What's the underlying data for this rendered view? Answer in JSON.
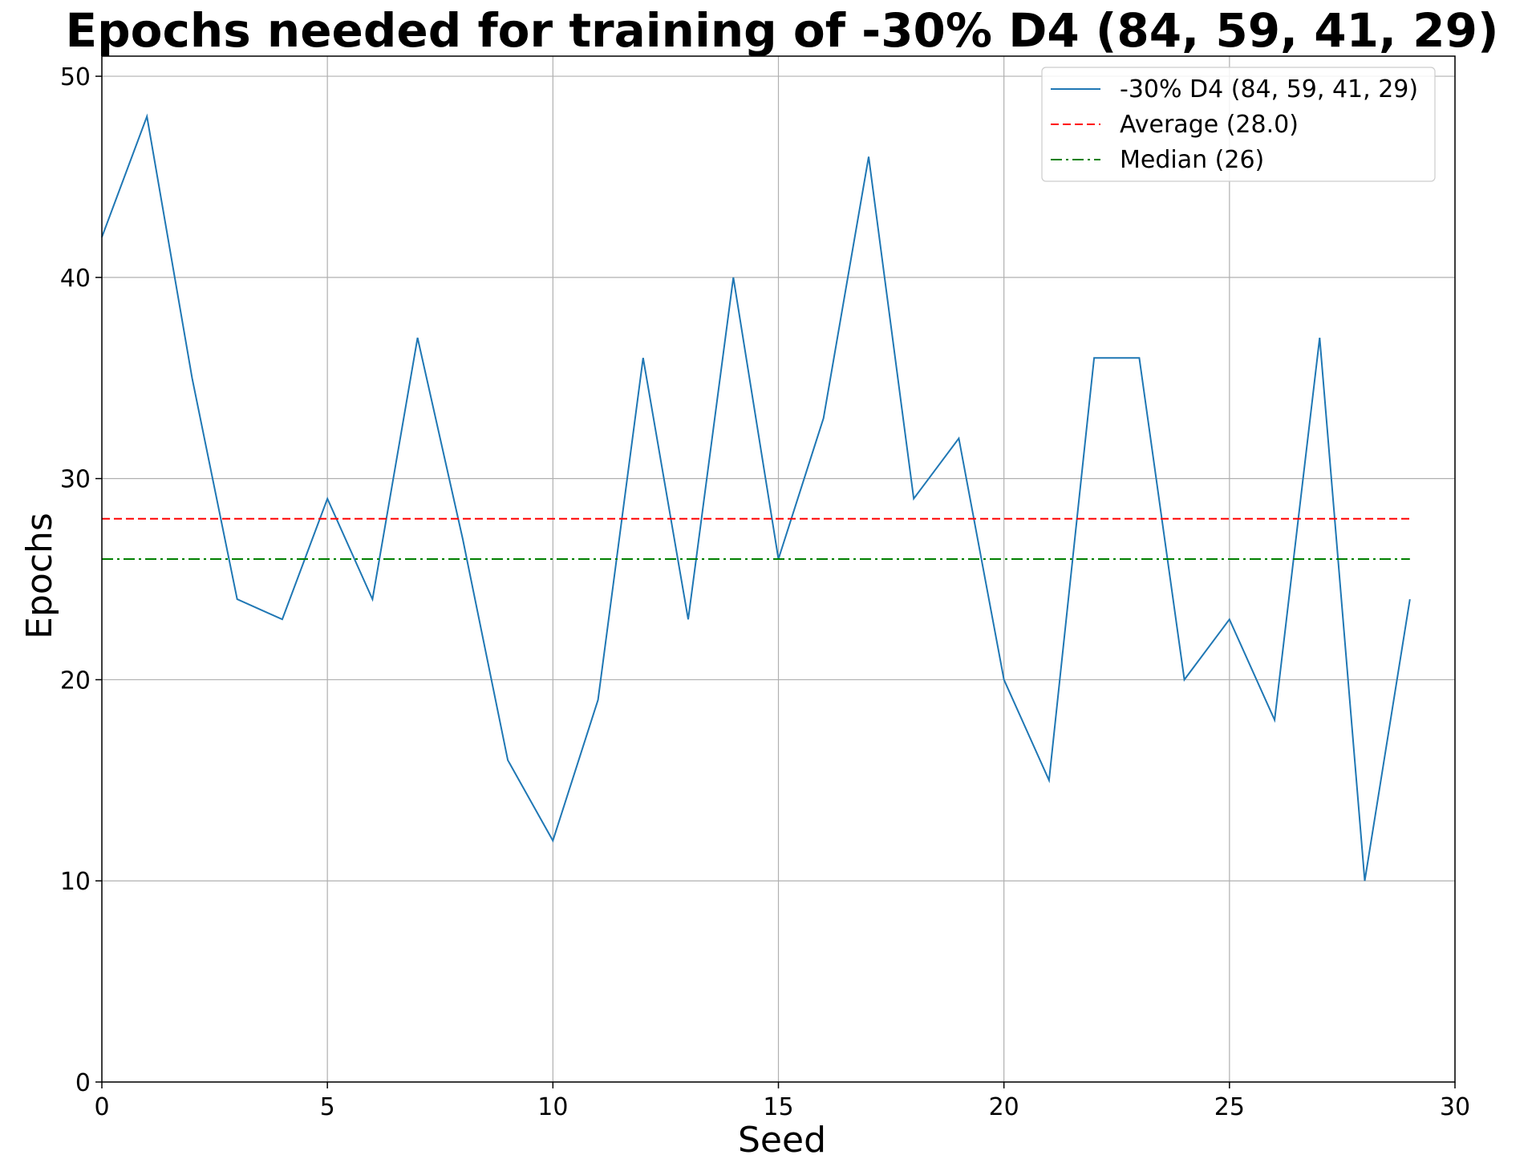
{
  "chart_data": {
    "type": "line",
    "title": "Epochs needed for training of -30% D4 (84, 59, 41, 29)",
    "xlabel": "Seed",
    "ylabel": "Epochs",
    "xlim": [
      0,
      30
    ],
    "ylim": [
      0,
      51
    ],
    "xticks": [
      0,
      5,
      10,
      15,
      20,
      25,
      30
    ],
    "yticks": [
      0,
      10,
      20,
      30,
      40,
      50
    ],
    "grid": true,
    "legend_position": "top-right",
    "series": [
      {
        "name": "-30% D4 (84, 59, 41, 29)",
        "color": "#1f77b4",
        "style": "solid",
        "x": [
          0,
          1,
          2,
          3,
          4,
          5,
          6,
          7,
          8,
          9,
          10,
          11,
          12,
          13,
          14,
          15,
          16,
          17,
          18,
          19,
          20,
          21,
          22,
          23,
          24,
          25,
          26,
          27,
          28,
          29
        ],
        "values": [
          42,
          48,
          35,
          24,
          23,
          29,
          24,
          37,
          27,
          16,
          12,
          19,
          36,
          23,
          40,
          26,
          33,
          46,
          29,
          32,
          20,
          15,
          36,
          36,
          20,
          23,
          18,
          37,
          10,
          24
        ]
      },
      {
        "name": "Average (28.0)",
        "color": "#ff0000",
        "style": "dashed",
        "x": [
          0,
          29
        ],
        "values": [
          28.0,
          28.0
        ]
      },
      {
        "name": "Median (26)",
        "color": "#008000",
        "style": "dashdot",
        "x": [
          0,
          29
        ],
        "values": [
          26,
          26
        ]
      }
    ]
  }
}
